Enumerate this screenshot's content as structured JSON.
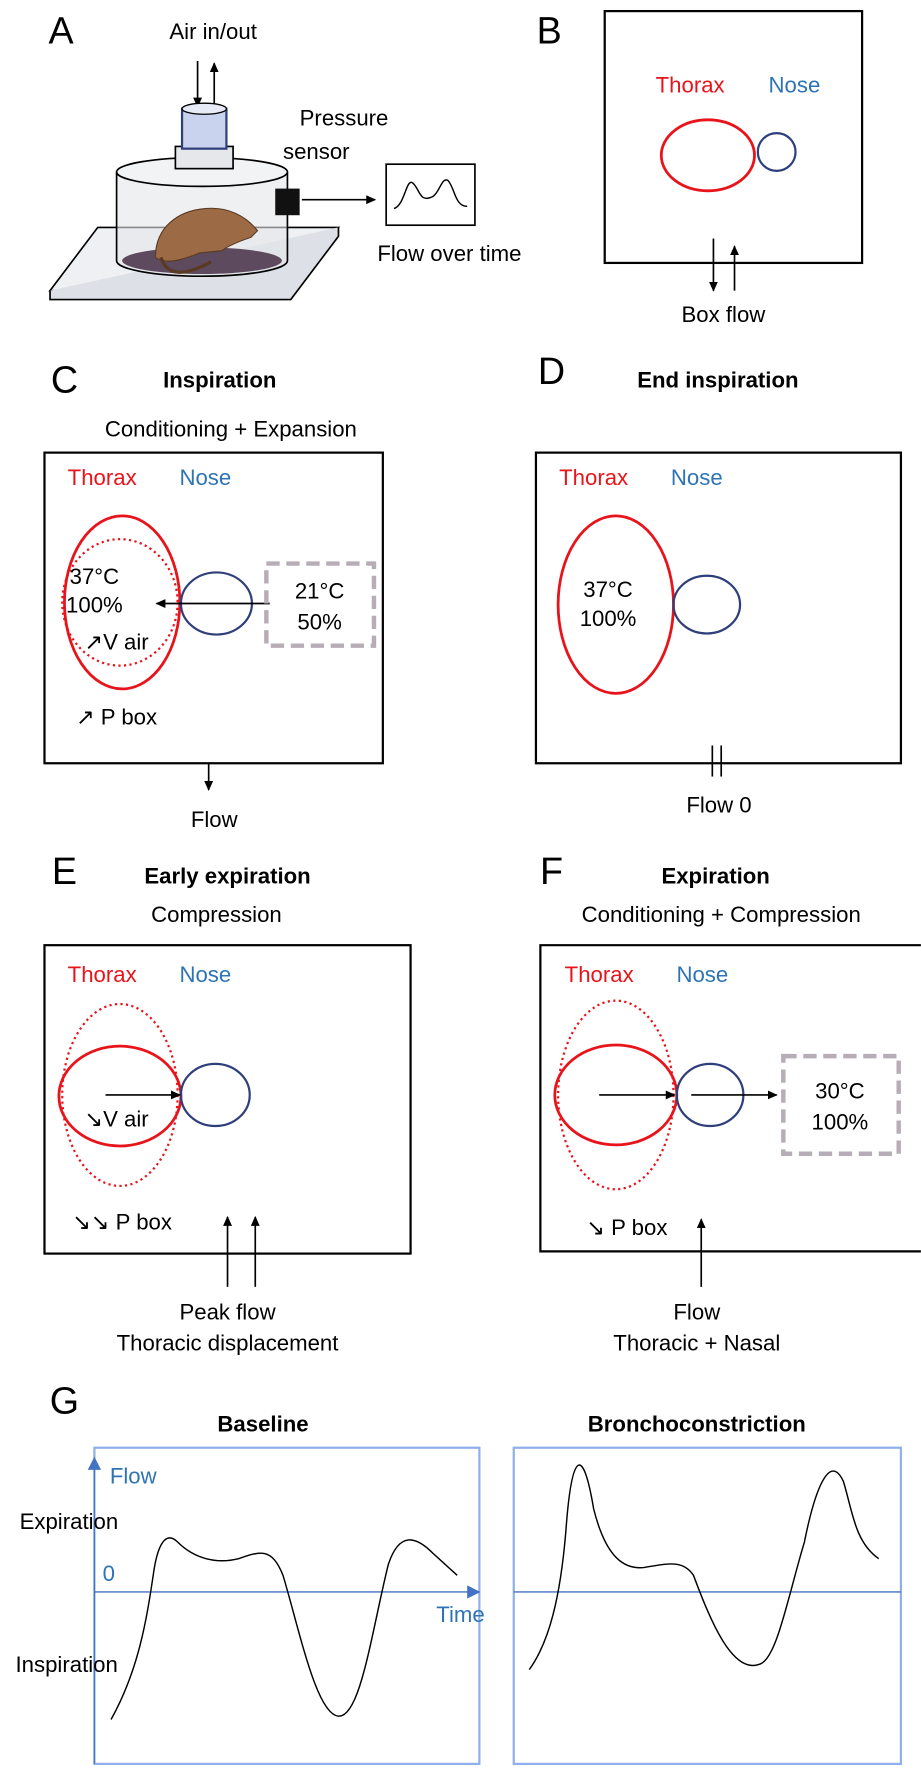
{
  "panel_a": {
    "letter": "A",
    "air": "Air in/out",
    "sensor": [
      "Pressure",
      "sensor"
    ],
    "flow": "Flow over time"
  },
  "panel_b": {
    "letter": "B",
    "thorax": "Thorax",
    "nose": "Nose",
    "flow": "Box flow"
  },
  "panel_c": {
    "letter": "C",
    "title": "Inspiration",
    "subtitle": "Conditioning + Expansion",
    "thorax": "Thorax",
    "nose": "Nose",
    "inner": [
      "37°C",
      "100%",
      "↗V air"
    ],
    "outer": [
      "21°C",
      "50%"
    ],
    "pbox": "↗ P box",
    "flow": [
      "Flow"
    ]
  },
  "panel_d": {
    "letter": "D",
    "title": "End inspiration",
    "thorax": "Thorax",
    "nose": "Nose",
    "inner": [
      "37°C",
      "100%"
    ],
    "flow": [
      "Flow 0"
    ]
  },
  "panel_e": {
    "letter": "E",
    "title": "Early expiration",
    "subtitle": "Compression",
    "thorax": "Thorax",
    "nose": "Nose",
    "inner": [
      "↘V air"
    ],
    "pbox": "↘↘ P box",
    "flow": [
      "Peak flow",
      "Thoracic displacement"
    ]
  },
  "panel_f": {
    "letter": "F",
    "title": "Expiration",
    "subtitle": "Conditioning + Compression",
    "thorax": "Thorax",
    "nose": "Nose",
    "outer": [
      "30°C",
      "100%"
    ],
    "pbox": "↘ P box",
    "flow": [
      "Flow",
      "Thoracic + Nasal"
    ]
  },
  "panel_g": {
    "letter": "G",
    "titles": [
      "Baseline",
      "Bronchoconstriction"
    ],
    "y_axis": "Flow",
    "x_axis": "Time",
    "expiration": "Expiration",
    "zero": "0",
    "inspiration": "Inspiration"
  }
}
